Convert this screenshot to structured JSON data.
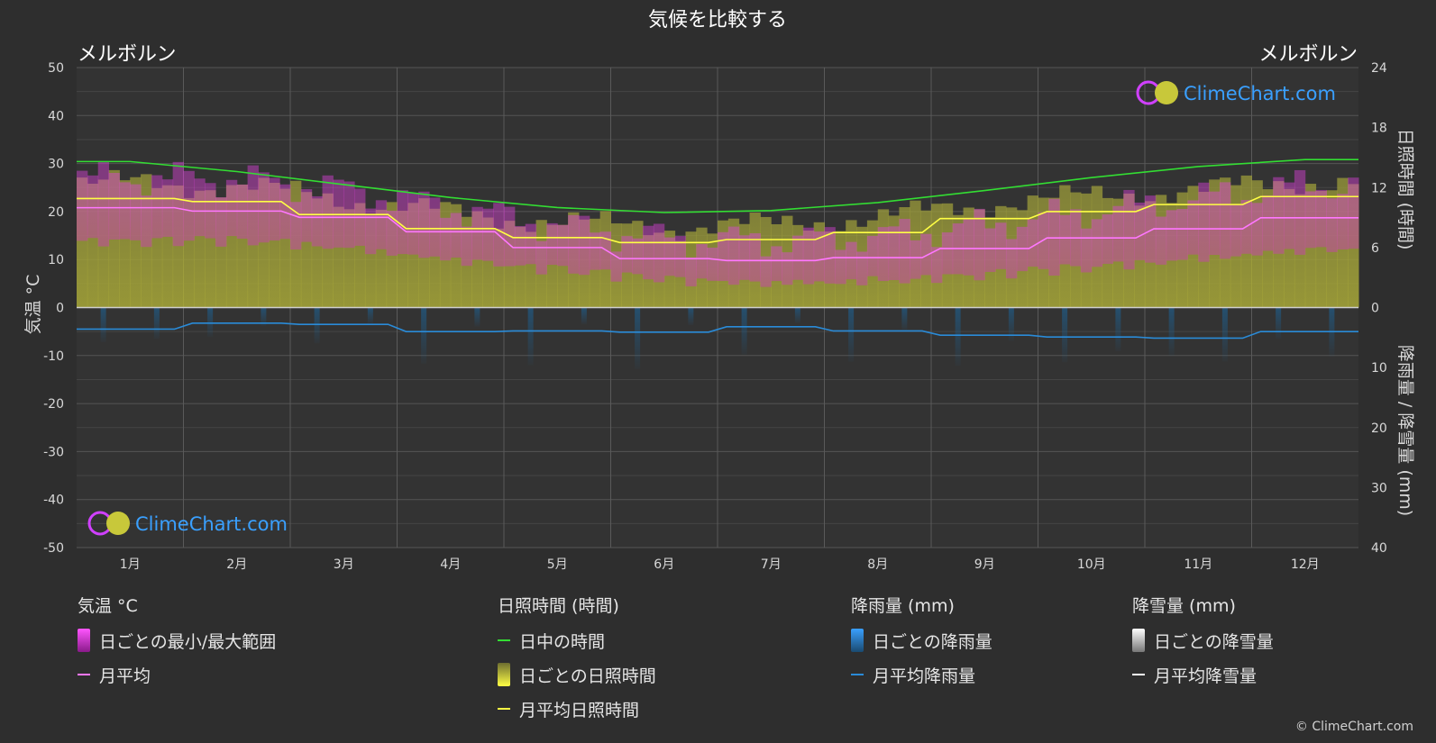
{
  "title": "気候を比較する",
  "location_left": "メルボルン",
  "location_right": "メルボルン",
  "logo_text": "ClimeChart.com",
  "copyright": "© ClimeChart.com",
  "colors": {
    "background": "#2e2e2e",
    "temp_range": "#e040e0",
    "temp_avg": "#ff77ff",
    "daylight": "#33dd33",
    "sunshine_daily": "#b8b83a",
    "sunshine_avg": "#ffff44",
    "rain": "#2a8bd8",
    "rain_avg": "#2a8bd8",
    "snow": "#ffffff",
    "logo_blue": "#3aa0ff"
  },
  "chart_data": {
    "type": "line",
    "months": [
      "1月",
      "2月",
      "3月",
      "4月",
      "5月",
      "6月",
      "7月",
      "8月",
      "9月",
      "10月",
      "11月",
      "12月"
    ],
    "axes": {
      "left_label": "気温 °C",
      "left_ticks": [
        50,
        40,
        30,
        20,
        10,
        0,
        -10,
        -20,
        -30,
        -40,
        -50
      ],
      "right_top_label": "日照時間 (時間)",
      "right_top_ticks": [
        24,
        18,
        12,
        6,
        0
      ],
      "right_bottom_label": "降雨量 / 降雪量 (mm)",
      "right_bottom_ticks": [
        0,
        10,
        20,
        30,
        40
      ],
      "temp_range": [
        -50,
        50
      ],
      "sun_range": [
        0,
        24
      ],
      "rain_range": [
        0,
        40
      ]
    },
    "series": {
      "temp_avg_monthly": [
        20.8,
        20.1,
        18.8,
        15.8,
        12.5,
        10.2,
        9.8,
        10.4,
        12.3,
        14.5,
        16.4,
        18.7
      ],
      "temp_max_daily_avg": [
        27.0,
        26.7,
        24.5,
        20.7,
        17.0,
        14.3,
        13.9,
        15.0,
        17.3,
        20.1,
        22.9,
        25.5
      ],
      "temp_min_daily_avg": [
        14.8,
        15.0,
        13.5,
        11.0,
        8.8,
        6.8,
        6.2,
        6.6,
        7.9,
        9.5,
        11.4,
        13.2
      ],
      "daylight_hours": [
        14.6,
        13.6,
        12.3,
        11.0,
        10.0,
        9.5,
        9.7,
        10.5,
        11.7,
        13.0,
        14.1,
        14.8
      ],
      "sunshine_avg_hours": [
        10.9,
        10.6,
        9.3,
        7.9,
        7.0,
        6.5,
        6.8,
        7.5,
        8.9,
        9.6,
        10.3,
        11.1
      ],
      "rain_avg_mm": [
        3.6,
        2.6,
        2.8,
        4.0,
        3.9,
        4.1,
        3.2,
        3.9,
        4.6,
        4.9,
        5.1,
        4.0
      ],
      "snow_avg_mm": [
        0,
        0,
        0,
        0,
        0,
        0,
        0,
        0,
        0,
        0,
        0,
        0
      ]
    }
  },
  "legend": {
    "temp": {
      "title": "気温 °C",
      "range_label": "日ごとの最小/最大範囲",
      "avg_label": "月平均"
    },
    "sun": {
      "title": "日照時間 (時間)",
      "daylight_label": "日中の時間",
      "daily_label": "日ごとの日照時間",
      "avg_label": "月平均日照時間"
    },
    "rain": {
      "title": "降雨量 (mm)",
      "daily_label": "日ごとの降雨量",
      "avg_label": "月平均降雨量"
    },
    "snow": {
      "title": "降雪量 (mm)",
      "daily_label": "日ごとの降雪量",
      "avg_label": "月平均降雪量"
    }
  }
}
